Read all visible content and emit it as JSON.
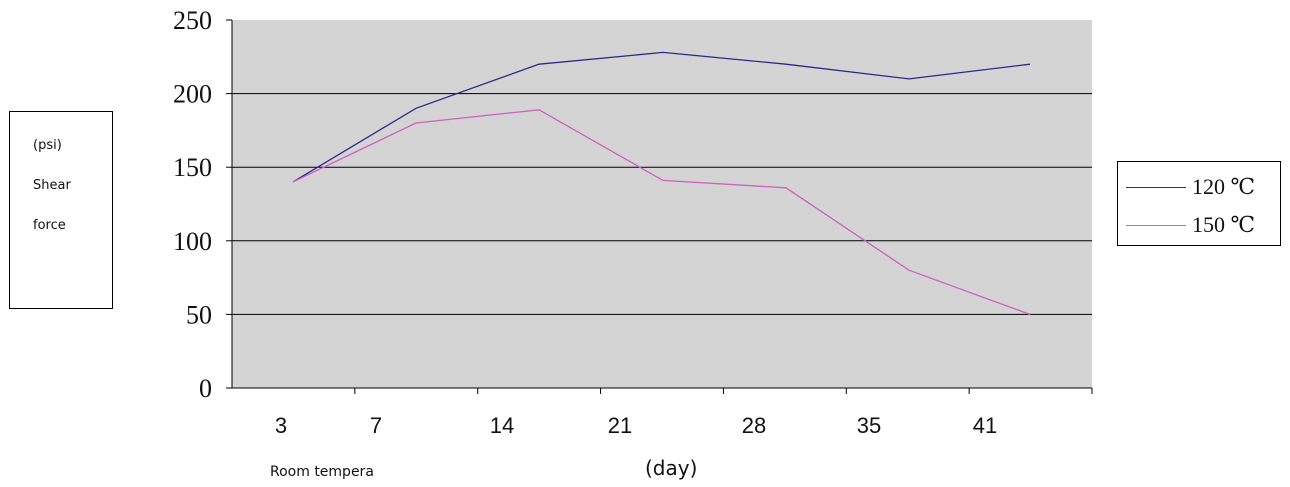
{
  "chart_data": {
    "type": "line",
    "categories": [
      "3",
      "7",
      "14",
      "21",
      "28",
      "35",
      "41"
    ],
    "x": [
      "3",
      "7",
      "14",
      "21",
      "28",
      "35",
      "41"
    ],
    "series": [
      {
        "name": "120 ℃",
        "color": "#2a2a8a",
        "values": [
          140,
          190,
          220,
          228,
          220,
          210,
          220
        ]
      },
      {
        "name": "150 ℃",
        "color": "#d060c0",
        "values": [
          140,
          180,
          189,
          141,
          136,
          80,
          50
        ]
      }
    ],
    "y_ticks": [
      "0",
      "50",
      "100",
      "150",
      "200",
      "250"
    ],
    "ylim": [
      0,
      250
    ],
    "ylabel_lines": [
      "(psi)",
      "Shear",
      "force"
    ],
    "xlabel_left": "Room tempera",
    "xlabel": "(day)",
    "plot_background": "#d4d4d4",
    "grid": "horizontal",
    "legend_position": "right"
  }
}
